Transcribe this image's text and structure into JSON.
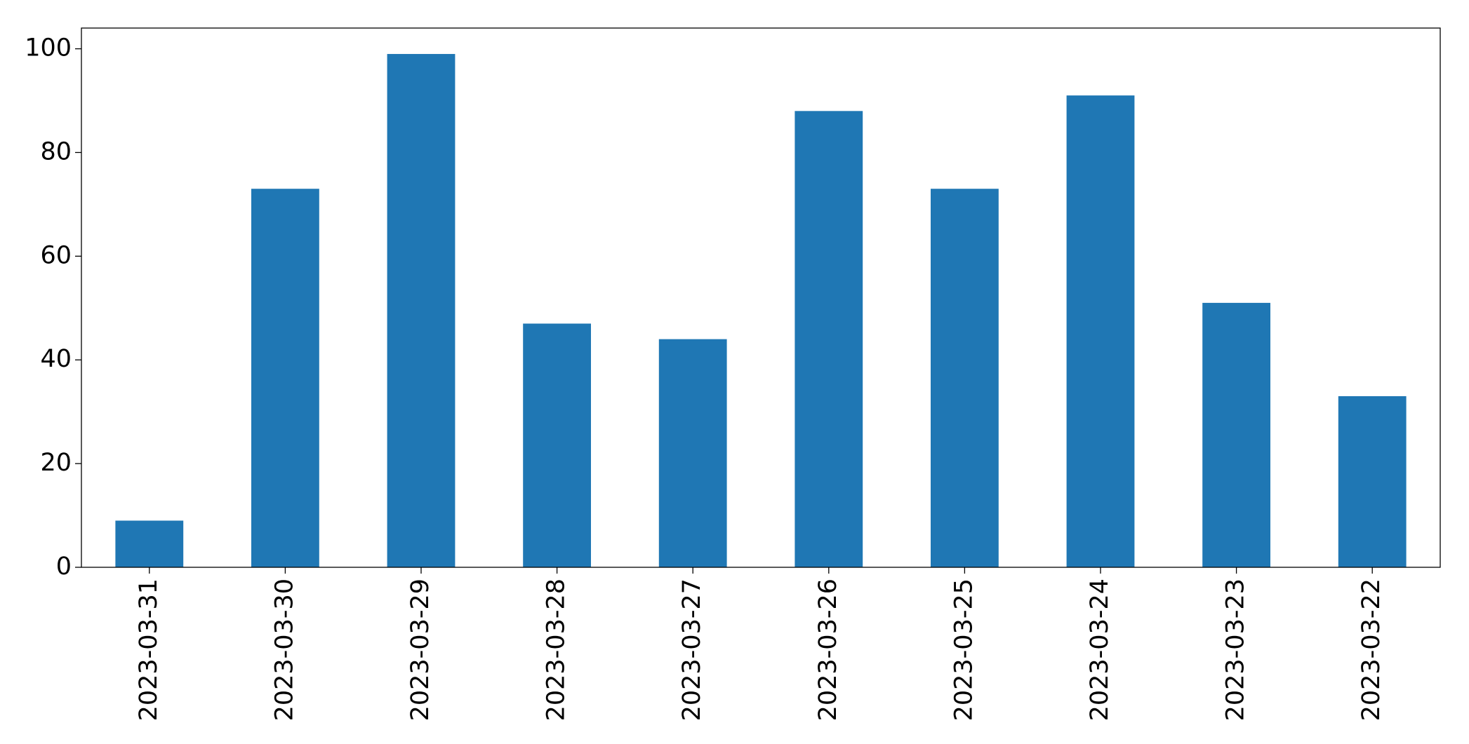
{
  "chart_data": {
    "type": "bar",
    "categories": [
      "2023-03-31",
      "2023-03-30",
      "2023-03-29",
      "2023-03-28",
      "2023-03-27",
      "2023-03-26",
      "2023-03-25",
      "2023-03-24",
      "2023-03-23",
      "2023-03-22"
    ],
    "values": [
      9,
      73,
      99,
      47,
      44,
      88,
      73,
      91,
      51,
      33
    ],
    "color": "#1f77b4",
    "ylim": [
      0,
      104
    ],
    "yticks": [
      0,
      20,
      40,
      60,
      80,
      100
    ],
    "grid": false
  }
}
